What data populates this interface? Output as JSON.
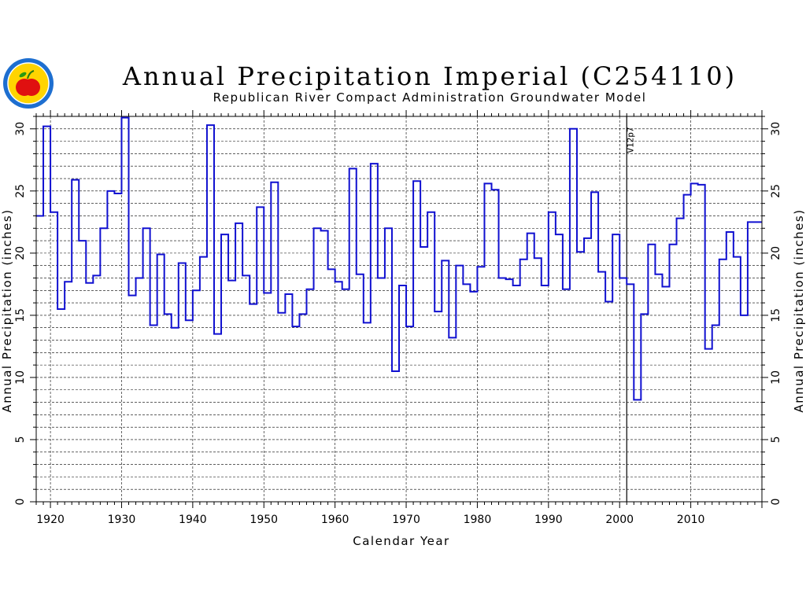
{
  "chart_data": {
    "type": "line",
    "step": true,
    "title": "Annual Precipitation Imperial (C254110)",
    "subtitle": "Republican River Compact Administration Groundwater Model",
    "xlabel": "Calendar Year",
    "ylabel": "Annual Precipitation (inches)",
    "xlim": [
      1918,
      2020
    ],
    "ylim": [
      0,
      31
    ],
    "x_ticks": [
      "1920",
      "1930",
      "1940",
      "1950",
      "1960",
      "1970",
      "1980",
      "1990",
      "2000",
      "2010"
    ],
    "y_ticks": [
      "0",
      "5",
      "10",
      "15",
      "20",
      "25",
      "30"
    ],
    "grid": true,
    "series_color": "#1010d0",
    "series": [
      {
        "x": [
          1918,
          1919,
          1920,
          1921,
          1922,
          1923,
          1924,
          1925,
          1926,
          1927,
          1928,
          1929,
          1930,
          1931,
          1932,
          1933,
          1934,
          1935,
          1936,
          1937,
          1938,
          1939,
          1940,
          1941,
          1942,
          1943,
          1944,
          1945,
          1946,
          1947,
          1948,
          1949,
          1950,
          1951,
          1952,
          1953,
          1954,
          1955,
          1956,
          1957,
          1958,
          1959,
          1960,
          1961,
          1962,
          1963,
          1964,
          1965,
          1966,
          1967,
          1968,
          1969,
          1970,
          1971,
          1972,
          1973,
          1974,
          1975,
          1976,
          1977,
          1978,
          1979,
          1980,
          1981,
          1982,
          1983,
          1984,
          1985,
          1986,
          1987,
          1988,
          1989,
          1990,
          1991,
          1992,
          1993,
          1994,
          1995,
          1996,
          1997,
          1998,
          1999,
          2000,
          2001,
          2002,
          2003,
          2004,
          2005,
          2006,
          2007,
          2008,
          2009,
          2010,
          2011,
          2012,
          2013,
          2014,
          2015,
          2016,
          2017,
          2018,
          2019
        ],
        "values": [
          23.0,
          30.2,
          23.3,
          15.5,
          17.7,
          25.9,
          21.0,
          17.6,
          18.2,
          22.0,
          25.0,
          24.8,
          30.9,
          16.6,
          18.0,
          22.0,
          14.2,
          19.9,
          15.1,
          14.0,
          19.2,
          14.6,
          17.0,
          19.7,
          30.3,
          13.5,
          21.5,
          17.8,
          22.4,
          18.2,
          15.9,
          23.7,
          16.8,
          25.7,
          15.2,
          16.7,
          14.1,
          15.1,
          17.1,
          22.0,
          21.8,
          18.7,
          17.7,
          17.1,
          26.8,
          18.3,
          14.4,
          27.2,
          18.0,
          22.0,
          10.5,
          17.4,
          14.1,
          25.8,
          20.5,
          23.3,
          15.3,
          19.4,
          13.2,
          19.0,
          17.5,
          16.9,
          18.9,
          25.6,
          25.1,
          18.0,
          17.9,
          17.4,
          19.5,
          21.6,
          19.6,
          17.4,
          23.3,
          21.5,
          17.1,
          30.0,
          20.1,
          21.2,
          24.9,
          18.5,
          16.1,
          21.5,
          18.0,
          17.5,
          8.2,
          15.1,
          20.7,
          18.3,
          17.3,
          20.7,
          22.8,
          24.7,
          25.6,
          25.5,
          12.3,
          14.2,
          19.5,
          21.7,
          19.7,
          15.0,
          22.5,
          22.5
        ]
      }
    ],
    "annotations": [
      {
        "x": 2001,
        "label": "V12p7"
      }
    ]
  },
  "logo": {
    "name": "agency-seal",
    "fill": "#ffd400",
    "ring": "#1e6fd0",
    "apple": "#e01010"
  }
}
